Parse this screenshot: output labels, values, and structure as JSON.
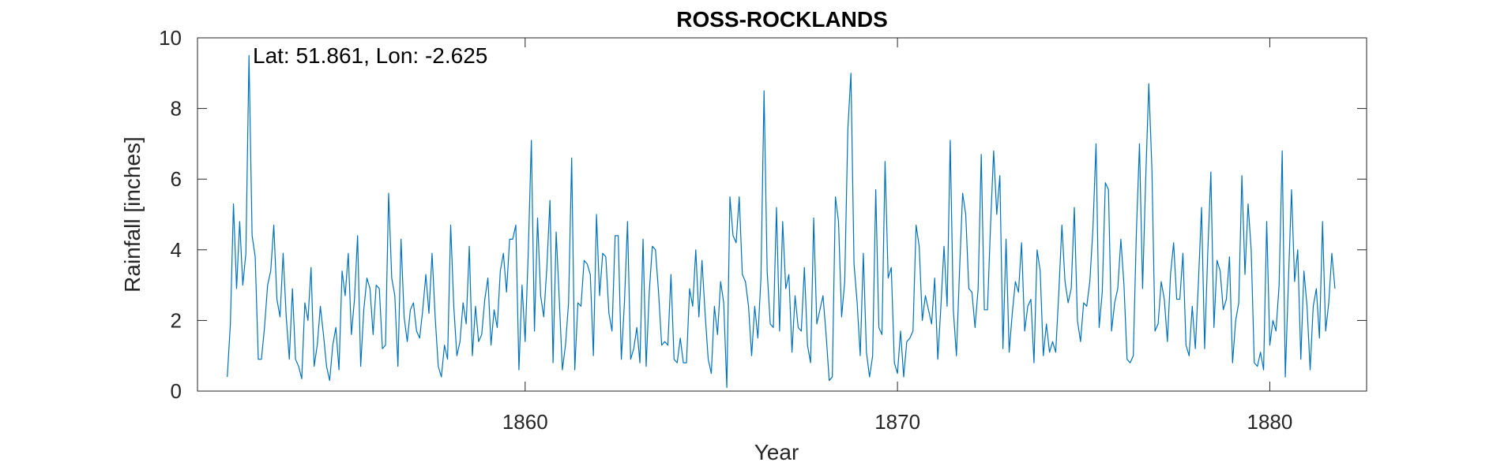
{
  "chart_data": {
    "type": "line",
    "title": "ROSS-ROCKLANDS",
    "annotation": "Lat: 51.861, Lon: -2.625",
    "xlabel": "Year",
    "ylabel": "Rainfall [inches]",
    "xlim": [
      1851.2,
      1882.6
    ],
    "ylim": [
      0,
      10
    ],
    "xticks": [
      1860,
      1870,
      1880
    ],
    "yticks": [
      0,
      2,
      4,
      6,
      8,
      10
    ],
    "grid": false,
    "line_color": "#0072BD",
    "series": [
      {
        "x_start": 1852.0,
        "x_step": 0.083333,
        "values": [
          0.4,
          1.9,
          5.3,
          2.9,
          4.8,
          3.0,
          3.9,
          9.5,
          4.4,
          3.8,
          0.9,
          0.9,
          1.8,
          3.0,
          3.4,
          4.7,
          2.6,
          2.1,
          3.9,
          2.1,
          0.9,
          2.9,
          0.9,
          0.7,
          0.35,
          2.5,
          2.0,
          3.5,
          0.7,
          1.3,
          2.4,
          1.6,
          0.7,
          0.3,
          1.3,
          1.8,
          0.6,
          3.4,
          2.7,
          3.9,
          1.6,
          2.6,
          4.4,
          0.7,
          2.3,
          3.2,
          2.9,
          1.6,
          3.0,
          2.9,
          1.2,
          1.3,
          5.6,
          3.2,
          2.7,
          0.7,
          4.3,
          2.1,
          1.4,
          2.3,
          2.5,
          1.7,
          1.5,
          2.3,
          3.3,
          2.2,
          3.9,
          2.1,
          0.7,
          0.4,
          1.3,
          0.9,
          4.7,
          2.4,
          1.0,
          1.4,
          2.5,
          1.9,
          4.1,
          1.0,
          2.4,
          1.4,
          1.6,
          2.6,
          3.2,
          1.3,
          2.3,
          1.8,
          3.4,
          3.9,
          2.8,
          4.3,
          4.3,
          4.7,
          0.6,
          3.0,
          1.4,
          3.9,
          7.1,
          1.7,
          4.9,
          2.7,
          2.1,
          3.5,
          5.4,
          0.8,
          4.5,
          2.6,
          0.6,
          1.3,
          2.5,
          6.6,
          0.6,
          2.5,
          2.4,
          3.7,
          3.6,
          3.3,
          1.0,
          5.0,
          2.7,
          3.9,
          3.8,
          2.2,
          1.7,
          4.4,
          4.4,
          0.9,
          2.5,
          4.8,
          0.9,
          1.2,
          1.8,
          0.8,
          4.3,
          0.7,
          2.8,
          4.1,
          4.0,
          2.8,
          1.3,
          1.4,
          1.3,
          3.3,
          0.9,
          0.8,
          1.5,
          0.8,
          0.8,
          2.9,
          2.4,
          4.0,
          2.1,
          3.7,
          2.2,
          0.9,
          0.5,
          2.4,
          1.6,
          3.1,
          2.5,
          0.1,
          5.5,
          4.4,
          4.2,
          5.5,
          3.3,
          3.1,
          2.4,
          1.0,
          2.4,
          1.5,
          3.2,
          8.5,
          3.4,
          1.9,
          1.8,
          5.2,
          1.7,
          4.8,
          2.9,
          3.3,
          1.1,
          2.7,
          1.8,
          1.7,
          3.5,
          1.3,
          0.8,
          4.9,
          1.9,
          2.3,
          2.7,
          1.6,
          0.3,
          0.4,
          5.5,
          4.8,
          2.1,
          3.1,
          7.4,
          9.0,
          3.6,
          2.5,
          1.0,
          3.9,
          1.1,
          0.4,
          1.0,
          5.7,
          1.8,
          1.6,
          6.5,
          3.2,
          3.5,
          0.8,
          0.5,
          1.7,
          0.4,
          1.4,
          1.5,
          1.7,
          4.7,
          4.1,
          2.0,
          2.7,
          2.3,
          1.9,
          3.2,
          0.9,
          2.4,
          4.1,
          2.4,
          7.1,
          2.3,
          1.0,
          3.4,
          5.6,
          5.0,
          2.9,
          2.8,
          1.8,
          2.9,
          6.7,
          2.3,
          2.3,
          4.7,
          6.8,
          5.0,
          6.1,
          1.2,
          4.3,
          1.1,
          2.2,
          3.1,
          2.8,
          4.2,
          1.7,
          2.4,
          2.6,
          0.8,
          4.0,
          3.4,
          1.0,
          1.9,
          1.1,
          1.4,
          1.1,
          2.8,
          4.7,
          3.1,
          2.5,
          2.9,
          5.2,
          2.0,
          1.4,
          2.5,
          2.4,
          3.1,
          4.6,
          7.0,
          1.8,
          2.8,
          5.9,
          5.7,
          1.7,
          2.5,
          2.9,
          4.3,
          3.0,
          0.9,
          0.8,
          1.0,
          4.5,
          7.0,
          2.9,
          6.0,
          8.7,
          6.3,
          1.7,
          1.9,
          3.1,
          2.6,
          1.4,
          3.3,
          4.2,
          2.6,
          2.6,
          3.9,
          1.3,
          1.0,
          2.4,
          1.2,
          3.1,
          5.2,
          1.2,
          3.9,
          6.2,
          1.8,
          3.7,
          3.4,
          2.3,
          2.6,
          3.8,
          0.8,
          2.0,
          2.5,
          6.1,
          3.3,
          5.3,
          4.0,
          0.8,
          0.7,
          1.1,
          0.6,
          4.8,
          1.3,
          2.0,
          1.7,
          3.0,
          6.8,
          0.4,
          3.1,
          5.7,
          3.1,
          4.0,
          0.9,
          3.4,
          2.4,
          0.6,
          2.4,
          2.9,
          1.5,
          4.8,
          1.7,
          2.5,
          3.9,
          2.9
        ]
      }
    ]
  }
}
